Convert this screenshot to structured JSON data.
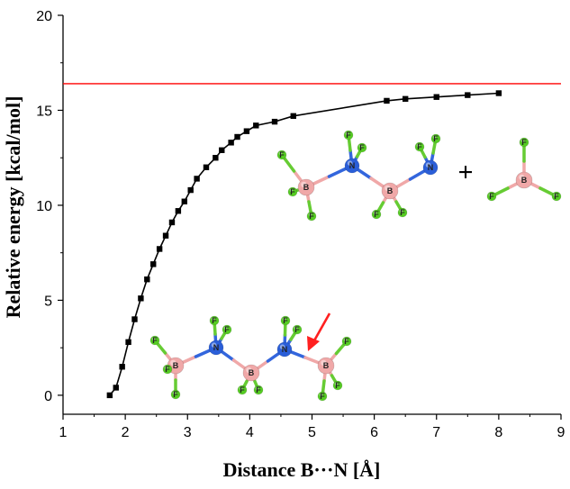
{
  "chart_data": {
    "type": "line",
    "title": "",
    "xlabel": "Distance B···N [Å]",
    "ylabel": "Relative energy [kcal/mol]",
    "xlim": [
      1,
      9
    ],
    "ylim": [
      -1,
      20
    ],
    "xticks": [
      "1",
      "2",
      "3",
      "4",
      "5",
      "6",
      "7",
      "8",
      "9"
    ],
    "yticks": [
      "0",
      "5",
      "10",
      "15",
      "20"
    ],
    "grid": false,
    "series": [
      {
        "marker": "square",
        "color": "#000000",
        "x": [
          1.75,
          1.85,
          1.95,
          2.05,
          2.15,
          2.25,
          2.35,
          2.45,
          2.55,
          2.65,
          2.75,
          2.85,
          2.95,
          3.05,
          3.15,
          3.3,
          3.45,
          3.55,
          3.7,
          3.8,
          3.95,
          4.1,
          4.4,
          4.7,
          6.2,
          6.5,
          7.0,
          7.5,
          8.0
        ],
        "y": [
          0.0,
          0.4,
          1.5,
          2.8,
          4.0,
          5.1,
          6.1,
          6.9,
          7.7,
          8.4,
          9.1,
          9.7,
          10.2,
          10.8,
          11.4,
          12.0,
          12.5,
          12.9,
          13.3,
          13.6,
          13.9,
          14.2,
          14.4,
          14.7,
          15.5,
          15.6,
          15.7,
          15.8,
          15.9
        ]
      }
    ],
    "reference_line": {
      "y": 16.4,
      "color": "#ff0000"
    },
    "arrow_color": "#ff2020",
    "atom_colors": {
      "B": "#f0a8a8",
      "N": "#2a5ed8",
      "F": "#55cc22",
      "bond_B": "#f0a8a8",
      "bond_N": "#3366dd",
      "bond_F": "#66cc33"
    },
    "atom_labels": {
      "B": "B",
      "N": "N",
      "F": "F"
    },
    "plus_sign": "+"
  }
}
